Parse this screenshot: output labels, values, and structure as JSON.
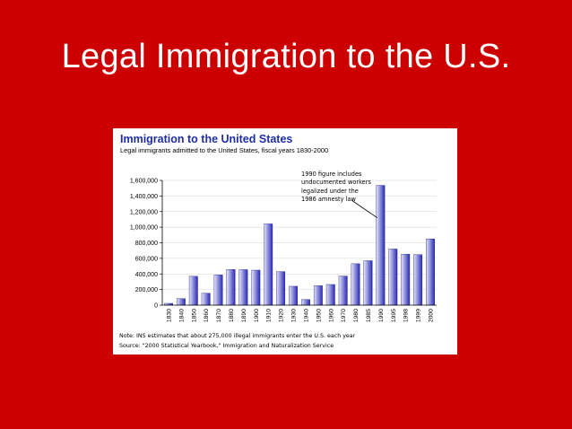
{
  "slide": {
    "title": "Legal Immigration to the U.S."
  },
  "chart_data": {
    "type": "bar",
    "title": "Immigration to the United States",
    "subtitle": "Legal immigrants admitted to the United States, fiscal years 1830-2000",
    "categories": [
      "1830",
      "1840",
      "1850",
      "1860",
      "1870",
      "1880",
      "1890",
      "1900",
      "1910",
      "1920",
      "1930",
      "1940",
      "1950",
      "1960",
      "1970",
      "1980",
      "1985",
      "1990",
      "1995",
      "1998",
      "1999",
      "2000"
    ],
    "values": [
      23000,
      84000,
      370000,
      153000,
      387000,
      457000,
      455000,
      449000,
      1042000,
      430000,
      242000,
      71000,
      249000,
      265000,
      373000,
      531000,
      570000,
      1536000,
      720000,
      654000,
      647000,
      850000
    ],
    "yticks": [
      "1,600,000",
      "1,400,000",
      "1,200,000",
      "1,000,000",
      "800,000",
      "600,000",
      "400,000",
      "200,000",
      "0"
    ],
    "ylim": [
      0,
      1600000
    ],
    "grid": true,
    "colors": {
      "bar_light": "#e6e6f8",
      "bar_dark": "#2a2ab8",
      "title": "#1f2f9f"
    },
    "annotation": {
      "lines": [
        "1990 figure includes",
        "undocumented workers",
        "legalized under the",
        "1986 amnesty law"
      ],
      "target_category": "1990"
    },
    "note": "Note: INS estimates that about 275,000 illegal immigrants enter the U.S. each year",
    "source": "Source: \"2000 Statistical Yearbook,\" Immigration and Naturalization Service"
  }
}
